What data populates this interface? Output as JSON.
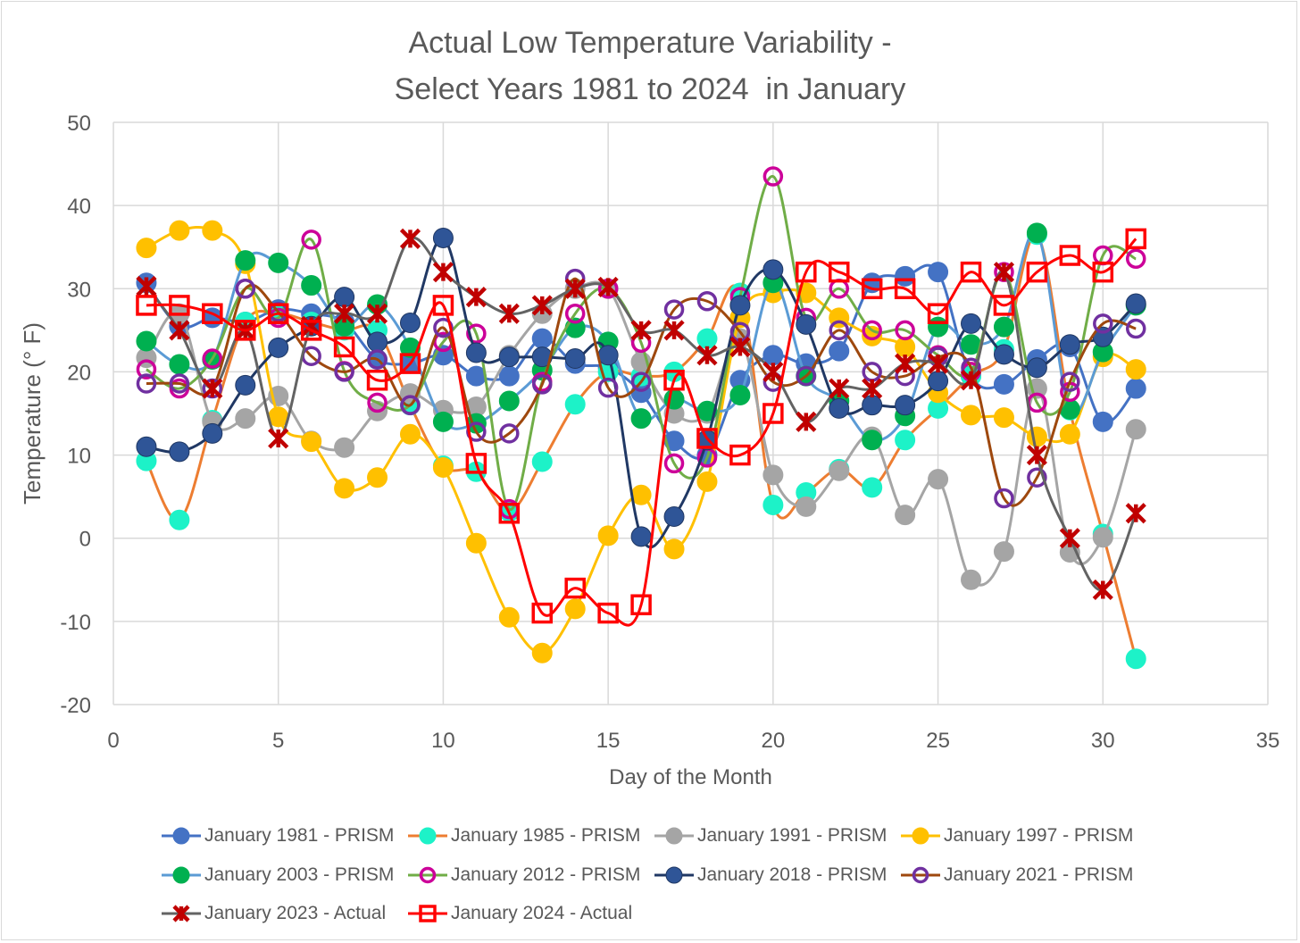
{
  "chart_data": {
    "type": "line",
    "title": [
      "Actual Low Temperature Variability -",
      "Select Years 1981 to 2024  in January"
    ],
    "xlabel": "Day of the Month",
    "ylabel": "Temperature (° F)",
    "xlim": [
      0,
      35
    ],
    "ylim": [
      -20,
      50
    ],
    "xticks": [
      0,
      5,
      10,
      15,
      20,
      25,
      30,
      35
    ],
    "yticks": [
      -20,
      -10,
      0,
      10,
      20,
      30,
      40,
      50
    ],
    "grid": true,
    "legend_placement": "bottom",
    "x": [
      1,
      2,
      3,
      4,
      5,
      6,
      7,
      8,
      9,
      10,
      11,
      12,
      13,
      14,
      15,
      16,
      17,
      18,
      19,
      20,
      21,
      22,
      23,
      24,
      25,
      26,
      27,
      28,
      29,
      30,
      31
    ],
    "series": [
      {
        "name": "January 1981 - PRISM",
        "line": "#4472C4",
        "marker": "circle",
        "fill": "#4472C4",
        "values": [
          30.7,
          25.5,
          26.5,
          26,
          27.5,
          27,
          26,
          21.5,
          21,
          22,
          19.5,
          19.5,
          24,
          21,
          20.5,
          17.5,
          11.7,
          10,
          19,
          22,
          21,
          22.5,
          30.7,
          31.5,
          32,
          19.5,
          18.5,
          21.5,
          23,
          14,
          18
        ]
      },
      {
        "name": "January 1985 - PRISM",
        "line": "#ED7D31",
        "marker": "circle",
        "fill": "#1DF2C8",
        "values": [
          9.3,
          2.2,
          14.2,
          26,
          27,
          26,
          25,
          25,
          16,
          8.7,
          8,
          3.2,
          9.2,
          16.1,
          20,
          19.5,
          20,
          24,
          29.5,
          4,
          5.5,
          8.3,
          6.1,
          11.8,
          15.6,
          19.5,
          22.7,
          36.5,
          15.4,
          0.5,
          -14.5
        ]
      },
      {
        "name": "January 1991 - PRISM",
        "line": "#A5A5A5",
        "marker": "circle",
        "fill": "#A5A5A5",
        "values": [
          21.7,
          27,
          14,
          14.4,
          17.1,
          11.7,
          10.9,
          15.3,
          17.4,
          15.4,
          15.8,
          22,
          27,
          30,
          30,
          21.2,
          15,
          15,
          24,
          7.6,
          3.8,
          8.1,
          12.2,
          2.8,
          7.1,
          -5,
          -1.6,
          18,
          -1.7,
          0.1,
          13.1
        ]
      },
      {
        "name": "January 1997 - PRISM",
        "line": "#FFC000",
        "marker": "circle",
        "fill": "#FFC000",
        "values": [
          34.9,
          37,
          37,
          33,
          14.6,
          11.6,
          6,
          7.3,
          12.5,
          8.5,
          -0.6,
          -9.5,
          -13.8,
          -8.5,
          0.3,
          5.2,
          -1.3,
          6.8,
          26.5,
          29.5,
          29.5,
          26.5,
          24.3,
          23,
          17.5,
          14.8,
          14.5,
          12.2,
          12.5,
          21.8,
          20.3
        ]
      },
      {
        "name": "January 2003 - PRISM",
        "line": "#5B9BD5",
        "marker": "circle",
        "fill": "#00B050",
        "values": [
          23.7,
          20.9,
          21.5,
          33.4,
          33.1,
          30.4,
          25.5,
          28.1,
          22.9,
          14,
          13.8,
          16.5,
          20.2,
          25.3,
          23.6,
          14.4,
          16.7,
          15.3,
          17.2,
          30.7,
          19.5,
          16.5,
          11.8,
          14.7,
          25.4,
          23.3,
          25.4,
          36.7,
          15.5,
          22.4,
          28
        ]
      },
      {
        "name": "January 2012 - PRISM",
        "line": "#70AD47",
        "marker": "ring",
        "fill": "#CC0099",
        "values": [
          20.3,
          18,
          21.6,
          30,
          26.5,
          35.9,
          20.1,
          16.3,
          16,
          23.6,
          24.6,
          3.5,
          18.8,
          27,
          30,
          23.5,
          9,
          9.7,
          29,
          43.5,
          26.5,
          30,
          25,
          25,
          22,
          20,
          32,
          16.3,
          17.6,
          34,
          33.6
        ]
      },
      {
        "name": "January 2018 - PRISM",
        "line": "#203864",
        "marker": "circle",
        "fill": "#2F5597",
        "values": [
          11,
          10.4,
          12.6,
          18.4,
          22.9,
          25.5,
          29,
          23.6,
          25.9,
          36.1,
          22.3,
          21.8,
          21.8,
          21.6,
          22,
          0.2,
          2.6,
          11.8,
          28,
          32.3,
          25.7,
          15.6,
          16,
          16,
          18.9,
          25.8,
          22.1,
          20.5,
          23.3,
          24.2,
          28.2
        ]
      },
      {
        "name": "January 2021 - PRISM",
        "line": "#9E480E",
        "marker": "ring",
        "fill": "#7030A0",
        "values": [
          18.6,
          18.6,
          18,
          30,
          27.2,
          21.9,
          20,
          21.5,
          16,
          25.3,
          12.8,
          12.6,
          18.5,
          31.2,
          18.1,
          18.8,
          27.5,
          28.5,
          24.8,
          18.8,
          19.5,
          25,
          20,
          19.5,
          21.8,
          20.5,
          4.8,
          7.3,
          18.8,
          25.8,
          25.2
        ]
      },
      {
        "name": "January 2023 - Actual",
        "line": "#636363",
        "marker": "x",
        "fill": "#C00000",
        "values": [
          30.3,
          25,
          18,
          25,
          12,
          25.5,
          27,
          27,
          36,
          32,
          29,
          27,
          28,
          30,
          30.2,
          25,
          25,
          22,
          23,
          20,
          14,
          18,
          18,
          21,
          21,
          19,
          32,
          10,
          0,
          -6.2,
          3
        ]
      },
      {
        "name": "January 2024 - Actual",
        "line": "#FF0000",
        "marker": "square",
        "fill": "#FF0000",
        "values": [
          28,
          28,
          27,
          25,
          27,
          25,
          23,
          19,
          21,
          28,
          9,
          3,
          -9,
          -6,
          -9,
          -8,
          19,
          12,
          10,
          15,
          32,
          32,
          30,
          30,
          27,
          32,
          28,
          32,
          34,
          32,
          36
        ]
      }
    ]
  }
}
